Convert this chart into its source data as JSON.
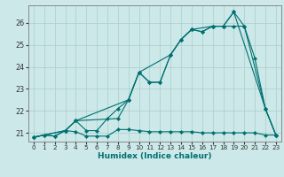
{
  "xlabel": "Humidex (Indice chaleur)",
  "bg_color": "#cce8e8",
  "grid_color": "#aacece",
  "line_color": "#007070",
  "spine_color": "#888888",
  "xlim": [
    -0.5,
    23.5
  ],
  "ylim": [
    20.6,
    26.8
  ],
  "yticks": [
    21,
    22,
    23,
    24,
    25,
    26
  ],
  "xticks": [
    0,
    1,
    2,
    3,
    4,
    5,
    6,
    7,
    8,
    9,
    10,
    11,
    12,
    13,
    14,
    15,
    16,
    17,
    18,
    19,
    20,
    21,
    22,
    23
  ],
  "lines": [
    {
      "x": [
        0,
        1,
        2,
        3,
        4,
        5,
        6,
        7,
        8,
        9,
        10,
        11,
        12,
        13,
        14,
        15,
        16,
        17,
        18,
        19,
        20,
        21,
        22,
        23
      ],
      "y": [
        20.8,
        20.9,
        20.85,
        21.1,
        21.05,
        20.85,
        20.85,
        20.85,
        21.15,
        21.15,
        21.1,
        21.05,
        21.05,
        21.05,
        21.05,
        21.05,
        21.0,
        21.0,
        21.0,
        21.0,
        21.0,
        21.0,
        20.9,
        20.9
      ]
    },
    {
      "x": [
        0,
        1,
        2,
        3,
        4,
        5,
        6,
        7,
        8,
        9,
        10,
        11,
        12,
        13,
        14,
        15,
        16,
        17,
        18,
        19,
        20,
        21,
        22,
        23
      ],
      "y": [
        20.8,
        20.9,
        20.85,
        21.1,
        21.55,
        21.1,
        21.1,
        21.65,
        22.1,
        22.5,
        23.75,
        23.3,
        23.3,
        24.55,
        25.25,
        25.7,
        25.6,
        25.85,
        25.85,
        25.85,
        25.85,
        24.4,
        22.1,
        20.9
      ]
    },
    {
      "x": [
        0,
        3,
        4,
        8,
        9,
        10,
        11,
        12,
        13,
        14,
        15,
        16,
        17,
        18,
        19,
        20,
        22,
        23
      ],
      "y": [
        20.8,
        21.1,
        21.55,
        21.65,
        22.5,
        23.75,
        23.3,
        23.3,
        24.55,
        25.25,
        25.7,
        25.6,
        25.85,
        25.85,
        26.5,
        25.85,
        22.1,
        20.9
      ]
    },
    {
      "x": [
        0,
        3,
        4,
        9,
        10,
        13,
        14,
        15,
        17,
        18,
        19,
        22,
        23
      ],
      "y": [
        20.8,
        21.1,
        21.55,
        22.5,
        23.75,
        24.55,
        25.25,
        25.7,
        25.85,
        25.85,
        26.5,
        22.1,
        20.9
      ]
    }
  ]
}
